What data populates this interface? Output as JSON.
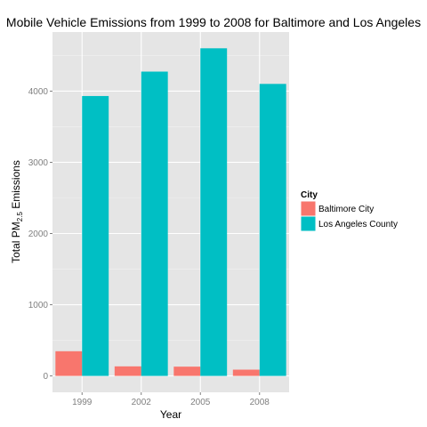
{
  "chart_data": {
    "type": "bar",
    "title": "Mobile Vehicle Emissions from 1999 to 2008 for Baltimore and Los Angeles",
    "xlabel": "Year",
    "ylabel": {
      "prefix": "Total PM",
      "subscript": "2.5",
      "suffix": " Emissions"
    },
    "categories": [
      "1999",
      "2002",
      "2005",
      "2008"
    ],
    "series": [
      {
        "name": "Baltimore City",
        "color": "#F8766D",
        "values": [
          346.8,
          134.3,
          130.4,
          88.3
        ]
      },
      {
        "name": "Los Angeles County",
        "color": "#00BFC4",
        "values": [
          3931.1,
          4274.0,
          4601.4,
          4101.3
        ]
      }
    ],
    "yticks": [
      0,
      1000,
      2000,
      3000,
      4000
    ],
    "ylim": [
      -230,
      4830
    ],
    "grid": true,
    "panel_background": "#E5E5E5",
    "legend": {
      "title": "City",
      "position": "right"
    }
  }
}
